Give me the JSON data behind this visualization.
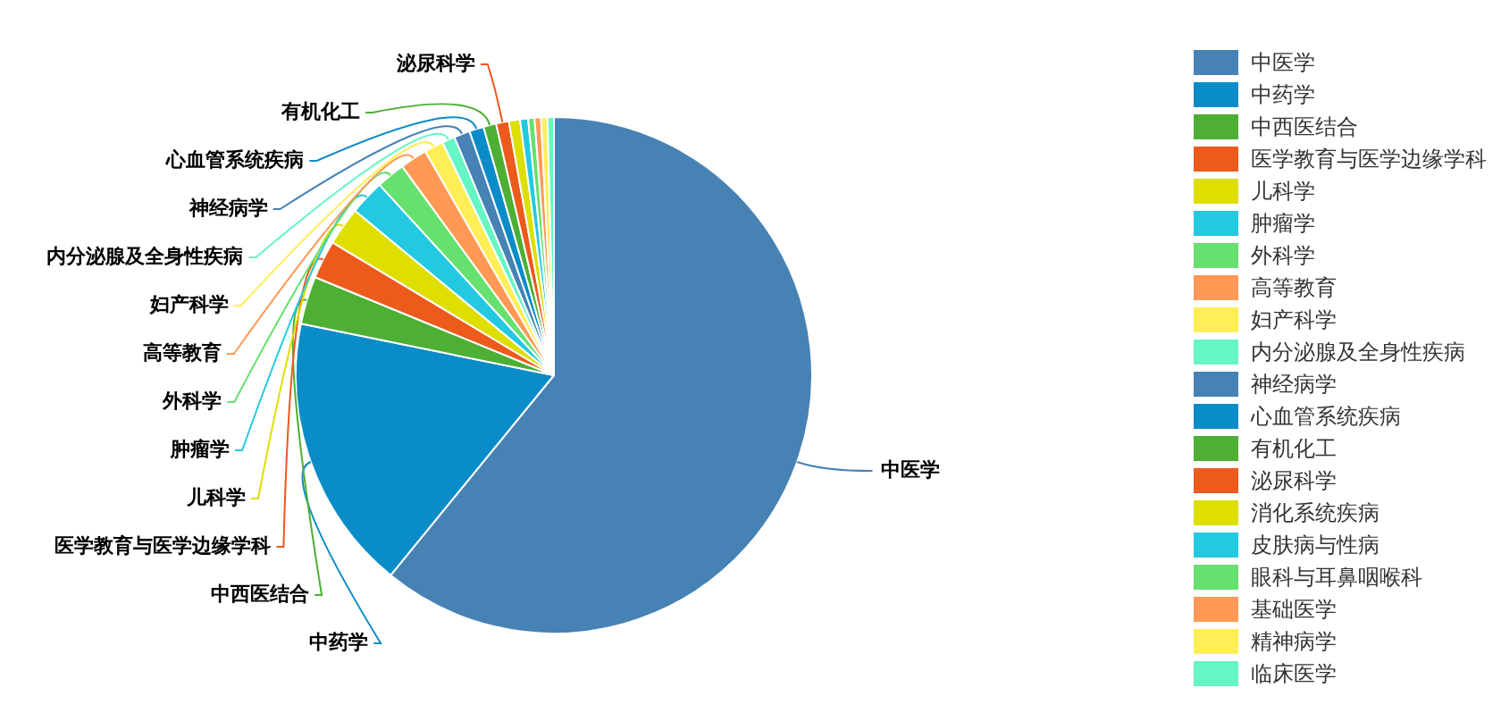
{
  "chart_data": {
    "type": "pie",
    "categories": [
      "中医学",
      "中药学",
      "中西医结合",
      "医学教育与医学边缘学科",
      "儿科学",
      "肿瘤学",
      "外科学",
      "高等教育",
      "妇产科学",
      "内分泌腺及全身性疾病",
      "神经病学",
      "心血管系统疾病",
      "有机化工",
      "泌尿科学",
      "消化系统疾病",
      "皮肤病与性病",
      "眼科与耳鼻咽喉科",
      "基础医学",
      "精神病学",
      "临床医学"
    ],
    "values": [
      60.9,
      17.3,
      3.0,
      2.4,
      2.4,
      2.2,
      1.8,
      1.7,
      1.2,
      0.8,
      1.0,
      0.9,
      0.8,
      0.8,
      0.7,
      0.5,
      0.4,
      0.4,
      0.4,
      0.4
    ],
    "colors": [
      "#4682b4",
      "#0a8cc8",
      "#4daf34",
      "#ec5a1c",
      "#dede00",
      "#22c9e0",
      "#66e06e",
      "#ff9955",
      "#ffee55",
      "#66f5c5",
      "#4682b4",
      "#0a8cc8",
      "#4daf34",
      "#ec5a1c",
      "#dede00",
      "#22c9e0",
      "#66e06e",
      "#ff9955",
      "#ffee55",
      "#66f5c5"
    ],
    "legend": "right"
  }
}
